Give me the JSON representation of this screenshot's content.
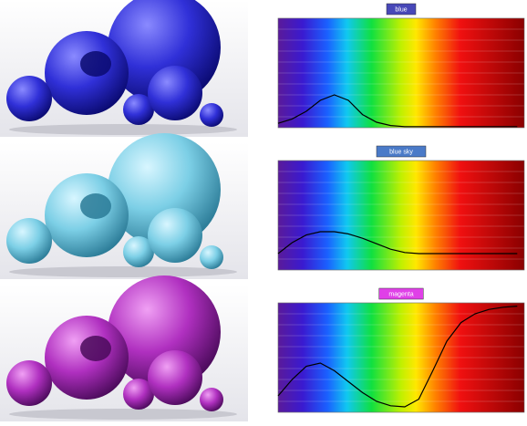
{
  "chart_data": [
    {
      "type": "line",
      "title": "blue",
      "color": "#000000",
      "x": [
        380,
        400,
        420,
        440,
        460,
        480,
        500,
        520,
        540,
        560,
        580,
        600,
        620,
        640,
        660,
        680,
        700,
        720
      ],
      "values": [
        0.04,
        0.08,
        0.15,
        0.25,
        0.3,
        0.25,
        0.12,
        0.05,
        0.02,
        0.01,
        0.01,
        0.01,
        0.01,
        0.01,
        0.01,
        0.01,
        0.01,
        0.01
      ],
      "xlim": [
        380,
        730
      ],
      "ylim": [
        0,
        1
      ],
      "yticks": [
        0,
        0.1,
        0.2,
        0.3,
        0.4,
        0.5,
        0.6,
        0.7,
        0.8,
        0.9,
        1
      ],
      "grid": true
    },
    {
      "type": "line",
      "title": "blue sky",
      "color": "#000000",
      "x": [
        380,
        400,
        420,
        440,
        460,
        480,
        500,
        520,
        540,
        560,
        580,
        600,
        620,
        640,
        660,
        680,
        700,
        720
      ],
      "values": [
        0.15,
        0.25,
        0.32,
        0.35,
        0.35,
        0.33,
        0.29,
        0.24,
        0.19,
        0.16,
        0.15,
        0.15,
        0.15,
        0.15,
        0.15,
        0.15,
        0.15,
        0.15
      ],
      "xlim": [
        380,
        730
      ],
      "ylim": [
        0,
        1
      ],
      "yticks": [
        0,
        0.1,
        0.2,
        0.3,
        0.4,
        0.5,
        0.6,
        0.7,
        0.8,
        0.9,
        1
      ],
      "grid": true
    },
    {
      "type": "line",
      "title": "magenta",
      "color": "#000000",
      "x": [
        380,
        400,
        420,
        440,
        460,
        480,
        500,
        520,
        540,
        560,
        580,
        600,
        620,
        640,
        660,
        680,
        700,
        720
      ],
      "values": [
        0.15,
        0.3,
        0.42,
        0.45,
        0.38,
        0.28,
        0.18,
        0.1,
        0.06,
        0.05,
        0.12,
        0.38,
        0.65,
        0.82,
        0.9,
        0.94,
        0.96,
        0.97
      ],
      "xlim": [
        380,
        730
      ],
      "ylim": [
        0,
        1
      ],
      "yticks": [
        0,
        0.1,
        0.2,
        0.3,
        0.4,
        0.5,
        0.6,
        0.7,
        0.8,
        0.9,
        1
      ],
      "grid": true
    }
  ]
}
